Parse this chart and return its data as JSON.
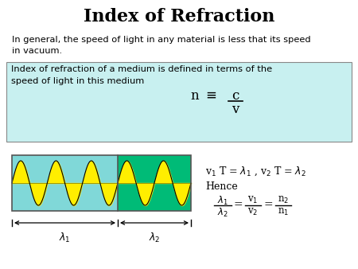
{
  "title": "Index of Refraction",
  "title_fontsize": 16,
  "bg_color": "#ffffff",
  "highlight_box_color": "#c8f0f0",
  "text_color": "#000000",
  "wave_color1_bg": "#80d8d8",
  "wave_color2_bg": "#00bb77",
  "wave_fill_color": "#ffee00",
  "line1": "In general, the speed of light in any material is less that its speed",
  "line2": "in vacuum.",
  "box_line1": "Index of refraction of a medium is defined in terms of the",
  "box_line2": "speed of light in this medium"
}
